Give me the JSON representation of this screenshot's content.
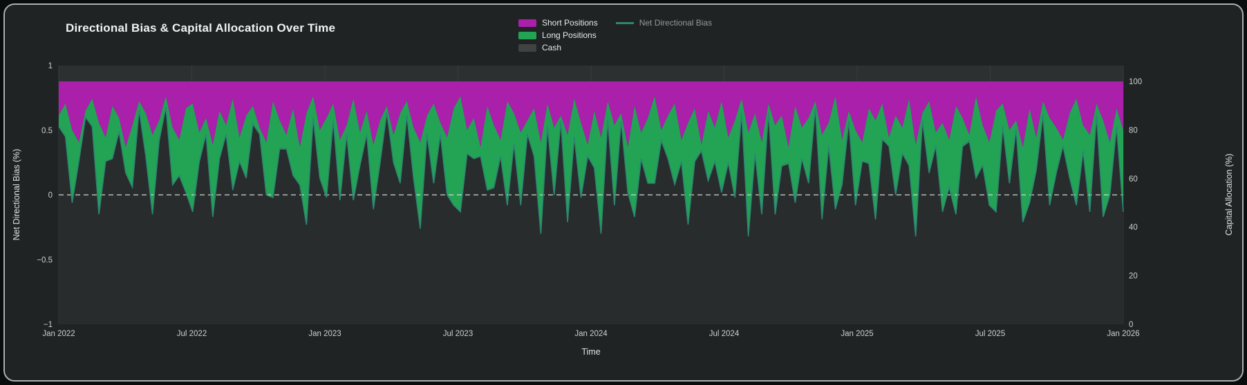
{
  "title": "Directional Bias & Capital Allocation Over Time",
  "legend": {
    "items": [
      {
        "label": "Short Positions",
        "color": "#ab20ab",
        "type": "fill",
        "muted": false
      },
      {
        "label": "Long Positions",
        "color": "#23a455",
        "type": "fill",
        "muted": false
      },
      {
        "label": "Cash",
        "color": "#424242",
        "type": "fill",
        "muted": false
      },
      {
        "label": "Net Directional Bias",
        "color": "#2d8673",
        "type": "line",
        "muted": true
      }
    ]
  },
  "axes": {
    "left": {
      "title": "Net Directional Bias (%)"
    },
    "right": {
      "title": "Capital Allocation (%)"
    },
    "x": {
      "title": "Time"
    }
  },
  "colors": {
    "short": "#ab20ab",
    "long": "#23a455",
    "cash": "#282c2c",
    "net_line": "#2d8673",
    "grid": "#3a4149",
    "grid_faint": "#353c40",
    "zero_line": "#d5d5d5",
    "plot_bg": "#2c3030",
    "tick_text": "#ccd0d0"
  },
  "chart_data": {
    "type": "area",
    "title": "Directional Bias & Capital Allocation Over Time",
    "x_label": "Time",
    "x_ticks": [
      "Jan 2022",
      "Jul 2022",
      "Jan 2023",
      "Jul 2023",
      "Jan 2024",
      "Jul 2024",
      "Jan 2025",
      "Jul 2025",
      "Jan 2026"
    ],
    "left_axis": {
      "label": "Net Directional Bias (%)",
      "range": [
        -1,
        1
      ],
      "ticks": [
        1,
        0.5,
        0,
        -0.5,
        -1
      ]
    },
    "right_axis": {
      "label": "Capital Allocation (%)",
      "range": [
        0,
        100
      ],
      "ticks": [
        100,
        80,
        60,
        40,
        20,
        0
      ]
    },
    "stack_order": [
      "Short Positions",
      "Long Positions",
      "Cash"
    ],
    "zero_line": {
      "axis": "left",
      "value": 0,
      "style": "dashed"
    },
    "legend_position": "top-center",
    "grid": true,
    "series": [
      {
        "name": "Short Positions",
        "axis": "right",
        "unit": "%",
        "values": [
          14,
          9,
          20,
          25,
          12,
          7,
          17,
          23,
          10,
          15,
          27,
          18,
          8,
          13,
          22,
          16,
          6,
          19,
          24,
          11,
          9,
          21,
          15,
          26,
          12,
          18,
          7,
          23,
          14,
          10,
          19,
          25,
          8,
          16,
          22,
          11,
          27,
          13,
          6,
          20,
          15,
          9,
          24,
          18,
          7,
          21,
          12,
          26,
          16,
          10,
          22,
          13,
          8,
          19,
          25,
          14,
          9,
          17,
          23,
          11,
          6,
          20,
          15,
          27,
          10,
          18,
          24,
          8,
          13,
          21,
          16,
          11,
          25,
          9,
          19,
          14,
          22,
          7,
          17,
          26,
          12,
          23,
          8,
          18,
          13,
          27,
          10,
          21,
          15,
          6,
          20,
          14,
          9,
          24,
          17,
          11,
          26,
          12,
          19,
          8,
          23,
          16,
          7,
          21,
          13,
          25,
          9,
          18,
          14,
          27,
          10,
          19,
          15,
          8,
          22,
          17,
          6,
          24,
          12,
          20,
          25,
          11,
          16,
          9,
          23,
          14,
          19,
          7,
          26,
          13,
          8,
          21,
          17,
          24,
          10,
          15,
          22,
          6,
          18,
          25,
          12,
          9,
          20,
          16,
          27,
          11,
          23,
          8,
          15,
          19,
          24,
          13,
          7,
          18,
          22,
          9,
          16,
          25,
          11,
          20
        ]
      },
      {
        "name": "Long Positions",
        "axis": "right",
        "unit": "%",
        "values": [
          5,
          14,
          30,
          8,
          3,
          12,
          38,
          10,
          22,
          6,
          11,
          26,
          4,
          18,
          33,
          9,
          5,
          24,
          15,
          35,
          45,
          12,
          7,
          30,
          20,
          4,
          38,
          10,
          26,
          8,
          3,
          22,
          40,
          12,
          6,
          28,
          16,
          46,
          9,
          20,
          33,
          7,
          25,
          4,
          42,
          14,
          10,
          27,
          18,
          3,
          12,
          29,
          6,
          21,
          36,
          8,
          33,
          5,
          24,
          40,
          48,
          10,
          17,
          4,
          35,
          26,
          7,
          43,
          13,
          30,
          6,
          20,
          38,
          10,
          28,
          3,
          36,
          16,
          31,
          5,
          24,
          40,
          8,
          33,
          4,
          19,
          46,
          11,
          27,
          36,
          5,
          18,
          34,
          9,
          42,
          22,
          3,
          29,
          14,
          38,
          11,
          32,
          6,
          43,
          17,
          30,
          4,
          37,
          21,
          7,
          40,
          13,
          27,
          3,
          35,
          10,
          47,
          19,
          5,
          31,
          8,
          23,
          41,
          15,
          4,
          33,
          11,
          28,
          38,
          3,
          30,
          6,
          37,
          20,
          45,
          12,
          3,
          34,
          17,
          26,
          42,
          10,
          22,
          4,
          31,
          39,
          14,
          6,
          36,
          19,
          3,
          27,
          44,
          11,
          32,
          5,
          40,
          22,
          8,
          34
        ]
      },
      {
        "name": "Cash",
        "axis": "right",
        "unit": "%",
        "values": [
          81,
          77,
          50,
          67,
          85,
          81,
          45,
          67,
          68,
          79,
          62,
          56,
          88,
          69,
          45,
          75,
          89,
          57,
          61,
          54,
          46,
          67,
          78,
          44,
          68,
          78,
          55,
          67,
          60,
          82,
          78,
          53,
          52,
          72,
          72,
          61,
          57,
          41,
          85,
          60,
          52,
          84,
          51,
          78,
          51,
          65,
          78,
          47,
          66,
          87,
          66,
          58,
          86,
          60,
          39,
          78,
          58,
          78,
          53,
          49,
          46,
          70,
          68,
          69,
          55,
          56,
          69,
          49,
          74,
          49,
          78,
          69,
          37,
          81,
          53,
          83,
          42,
          77,
          52,
          69,
          64,
          37,
          84,
          49,
          83,
          54,
          44,
          68,
          58,
          58,
          75,
          68,
          57,
          67,
          41,
          67,
          71,
          59,
          67,
          54,
          66,
          52,
          87,
          36,
          70,
          45,
          87,
          45,
          65,
          66,
          50,
          68,
          58,
          89,
          43,
          73,
          47,
          57,
          83,
          49,
          67,
          66,
          43,
          76,
          73,
          53,
          70,
          65,
          36,
          84,
          62,
          73,
          46,
          56,
          45,
          73,
          75,
          60,
          65,
          49,
          46,
          81,
          58,
          80,
          42,
          50,
          63,
          86,
          49,
          62,
          73,
          60,
          49,
          71,
          46,
          86,
          44,
          53,
          81,
          46
        ]
      },
      {
        "name": "Net Directional Bias",
        "axis": "left",
        "values": [
          0.53,
          0.45,
          -0.06,
          0.26,
          0.6,
          0.53,
          -0.15,
          0.26,
          0.28,
          0.49,
          0.17,
          0.06,
          0.66,
          0.3,
          -0.15,
          0.42,
          0.68,
          0.08,
          0.15,
          0.02,
          -0.13,
          0.26,
          0.47,
          -0.17,
          0.28,
          0.47,
          0.04,
          0.26,
          0.13,
          0.55,
          0.47,
          0,
          -0.02,
          0.36,
          0.36,
          0.15,
          0.08,
          -0.23,
          0.6,
          0.13,
          -0.02,
          0.58,
          -0.04,
          0.47,
          -0.04,
          0.23,
          0.47,
          -0.11,
          0.25,
          0.64,
          0.25,
          0.09,
          0.62,
          0.13,
          -0.26,
          0.47,
          0.09,
          0.47,
          0,
          -0.08,
          -0.13,
          0.32,
          0.28,
          0.3,
          0.04,
          0.06,
          0.3,
          -0.08,
          0.4,
          -0.08,
          0.47,
          0.3,
          -0.3,
          0.53,
          0,
          0.57,
          -0.21,
          0.45,
          -0.02,
          0.3,
          0.21,
          -0.3,
          0.58,
          -0.08,
          0.57,
          0.02,
          -0.17,
          0.28,
          0.09,
          0.09,
          0.42,
          0.28,
          0.08,
          0.26,
          -0.23,
          0.26,
          0.34,
          0.11,
          0.26,
          0.02,
          0.25,
          -0.02,
          0.64,
          -0.32,
          0.32,
          -0.15,
          0.64,
          -0.15,
          0.23,
          0.25,
          -0.06,
          0.28,
          0.09,
          0.68,
          -0.19,
          0.38,
          -0.11,
          0.08,
          0.57,
          -0.08,
          0.26,
          0.25,
          -0.19,
          0.43,
          0.38,
          0,
          0.32,
          0.23,
          -0.32,
          0.58,
          0.17,
          0.38,
          -0.13,
          0.06,
          -0.15,
          0.38,
          0.42,
          0.13,
          0.23,
          -0.08,
          -0.13,
          0.53,
          0.09,
          0.51,
          -0.21,
          -0.06,
          0.19,
          0.62,
          -0.08,
          0.17,
          0.38,
          0.13,
          -0.08,
          0.34,
          -0.13,
          0.62,
          -0.17,
          0,
          0.53,
          -0.13
        ]
      }
    ]
  }
}
